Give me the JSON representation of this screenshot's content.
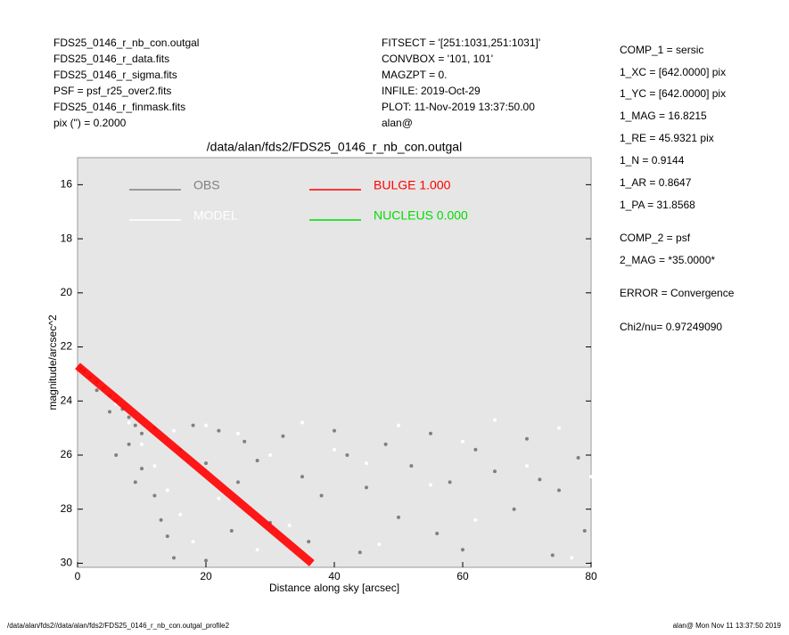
{
  "header": {
    "left": [
      "FDS25_0146_r_nb_con.outgal",
      "FDS25_0146_r_data.fits",
      "FDS25_0146_r_sigma.fits",
      "PSF     = psf_r25_over2.fits",
      "FDS25_0146_r_finmask.fits",
      "pix (\") =  0.2000"
    ],
    "middle": [
      "FITSECT = '[251:1031,251:1031]'",
      "CONVBOX = '101, 101'",
      "MAGZPT  =              0.",
      "INFILE: 2019-Oct-29",
      "PLOT: 11-Nov-2019 13:37:50.00",
      "alan@"
    ],
    "right": [
      "COMP_1  = sersic",
      "1_XC    = [642.0000] pix",
      "1_YC    = [642.0000] pix",
      "1_MAG   = 16.8215",
      "1_RE    = 45.9321 pix",
      "1_N     = 0.9144",
      "1_AR    = 0.8647",
      "1_PA    = 31.8568",
      "COMP_2  = psf",
      "2_MAG   = *35.0000*",
      "ERROR   = Convergence",
      "Chi2/nu=      0.97249090"
    ]
  },
  "footer": {
    "left": "/data/alan/fds2//data/alan/fds2/FDS25_0146_r_nb_con.outgal_profile2",
    "right": "alan@  Mon Nov 11 13:37:50 2019"
  },
  "chart_data": {
    "type": "scatter",
    "title": "/data/alan/fds2/FDS25_0146_r_nb_con.outgal",
    "x_label": "Distance along sky [arcsec]",
    "y_label": "magnitude/arcsec^2",
    "xlim": [
      0,
      80
    ],
    "xticks": [
      0,
      20,
      40,
      60,
      80
    ],
    "ylim": [
      30.15,
      15
    ],
    "yticks": [
      16,
      18,
      20,
      22,
      24,
      26,
      28,
      30
    ],
    "series": [
      {
        "name": "OBS",
        "color": "#808080",
        "x": [
          0.5,
          1,
          2,
          3,
          4,
          5,
          6,
          7,
          8,
          9,
          10,
          3,
          5,
          8,
          10,
          12,
          13,
          14,
          15,
          12,
          16,
          20,
          25,
          30,
          18,
          22,
          26,
          28,
          32,
          35,
          38,
          40,
          42,
          45,
          48,
          50,
          52,
          55,
          58,
          60,
          62,
          65,
          68,
          70,
          72,
          75,
          78,
          79,
          44,
          36,
          56,
          74,
          20,
          6,
          9,
          24
        ],
        "values": [
          22.8,
          22.9,
          23.1,
          23.3,
          23.5,
          23.8,
          24.0,
          24.3,
          24.6,
          24.9,
          25.2,
          23.6,
          24.4,
          25.6,
          26.5,
          27.5,
          28.4,
          29.0,
          29.8,
          25.0,
          25.8,
          26.3,
          27.0,
          28.5,
          24.9,
          25.1,
          25.5,
          26.2,
          25.3,
          26.8,
          27.5,
          25.1,
          26.0,
          27.2,
          25.6,
          28.3,
          26.4,
          25.2,
          27.0,
          29.5,
          25.8,
          26.6,
          28.0,
          25.4,
          26.9,
          27.3,
          26.1,
          28.8,
          29.6,
          29.2,
          28.9,
          29.7,
          29.9,
          26.0,
          27.0,
          28.8
        ]
      },
      {
        "name": "MODEL",
        "color": "#ffffff",
        "x": [
          2,
          4,
          6,
          8,
          10,
          12,
          14,
          16,
          18,
          15,
          20,
          25,
          30,
          35,
          40,
          45,
          50,
          55,
          60,
          65,
          70,
          75,
          80,
          33,
          47,
          62,
          77,
          22,
          28
        ],
        "values": [
          23.0,
          23.4,
          24.1,
          24.8,
          25.6,
          26.4,
          27.3,
          28.2,
          29.2,
          25.1,
          24.9,
          25.2,
          26.0,
          24.8,
          25.8,
          26.3,
          24.9,
          27.1,
          25.5,
          24.7,
          26.4,
          25.0,
          26.8,
          28.6,
          29.3,
          28.4,
          29.8,
          27.6,
          29.5
        ]
      },
      {
        "name": "BULGE  1.000",
        "color": "#ff0000",
        "x": [
          0,
          5,
          10,
          15,
          20,
          25,
          30,
          35,
          36.5
        ],
        "values": [
          22.7,
          23.7,
          24.7,
          25.7,
          26.7,
          27.7,
          28.7,
          29.7,
          30.0
        ]
      },
      {
        "name": "NUCLEUS  0.000",
        "color": "#00dd00",
        "x": [],
        "values": []
      }
    ]
  }
}
